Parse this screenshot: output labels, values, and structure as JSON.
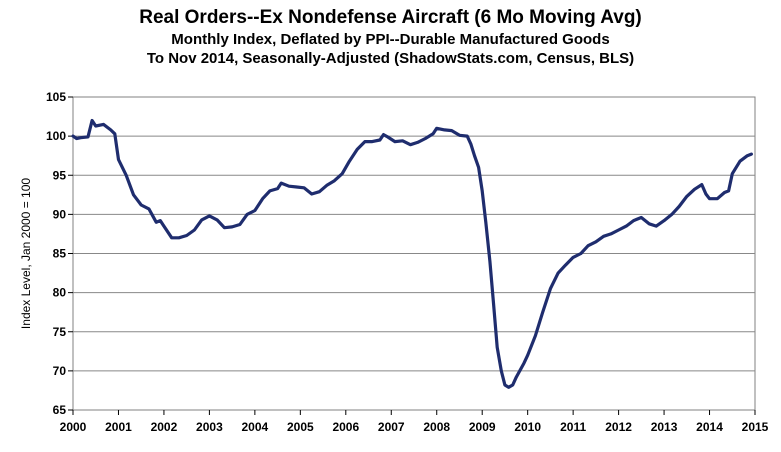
{
  "chart_data": {
    "type": "line",
    "title": "Real Orders--Ex Nondefense Aircraft (6 Mo Moving Avg)",
    "subtitle_1": "Monthly Index, Deflated by PPI--Durable Manufactured Goods",
    "subtitle_2": "To Nov 2014, Seasonally-Adjusted  (ShadowStats.com, Census, BLS)",
    "xlabel": "",
    "ylabel": "Index Level, Jan 2000 = 100",
    "xlim": [
      2000,
      2015
    ],
    "ylim": [
      65,
      105
    ],
    "x_ticks": [
      "2000",
      "2001",
      "2002",
      "2003",
      "2004",
      "2005",
      "2006",
      "2007",
      "2008",
      "2009",
      "2010",
      "2011",
      "2012",
      "2013",
      "2014",
      "2015"
    ],
    "y_ticks": [
      "65",
      "70",
      "75",
      "80",
      "85",
      "90",
      "95",
      "100",
      "105"
    ],
    "grid": true,
    "line_color": "#1f2d6e",
    "series": [
      {
        "name": "Real Orders--Ex Nondefense Aircraft (6 Mo Moving Avg)",
        "points": [
          [
            2000.0,
            100.0
          ],
          [
            2000.08,
            99.7
          ],
          [
            2000.17,
            99.8
          ],
          [
            2000.33,
            99.9
          ],
          [
            2000.42,
            102.0
          ],
          [
            2000.5,
            101.3
          ],
          [
            2000.67,
            101.5
          ],
          [
            2000.83,
            100.8
          ],
          [
            2000.92,
            100.3
          ],
          [
            2001.0,
            97.0
          ],
          [
            2001.17,
            95.0
          ],
          [
            2001.33,
            92.5
          ],
          [
            2001.5,
            91.2
          ],
          [
            2001.67,
            90.7
          ],
          [
            2001.83,
            89.0
          ],
          [
            2001.92,
            89.2
          ],
          [
            2002.0,
            88.5
          ],
          [
            2002.17,
            87.0
          ],
          [
            2002.33,
            87.0
          ],
          [
            2002.5,
            87.3
          ],
          [
            2002.67,
            88.0
          ],
          [
            2002.83,
            89.3
          ],
          [
            2003.0,
            89.8
          ],
          [
            2003.17,
            89.3
          ],
          [
            2003.33,
            88.3
          ],
          [
            2003.5,
            88.4
          ],
          [
            2003.67,
            88.7
          ],
          [
            2003.83,
            90.0
          ],
          [
            2004.0,
            90.5
          ],
          [
            2004.17,
            92.0
          ],
          [
            2004.33,
            93.0
          ],
          [
            2004.5,
            93.3
          ],
          [
            2004.58,
            94.0
          ],
          [
            2004.75,
            93.6
          ],
          [
            2004.92,
            93.5
          ],
          [
            2005.08,
            93.4
          ],
          [
            2005.25,
            92.6
          ],
          [
            2005.42,
            92.9
          ],
          [
            2005.58,
            93.7
          ],
          [
            2005.75,
            94.3
          ],
          [
            2005.92,
            95.2
          ],
          [
            2006.0,
            96.0
          ],
          [
            2006.08,
            96.8
          ],
          [
            2006.25,
            98.3
          ],
          [
            2006.42,
            99.3
          ],
          [
            2006.58,
            99.3
          ],
          [
            2006.75,
            99.5
          ],
          [
            2006.83,
            100.2
          ],
          [
            2006.92,
            99.9
          ],
          [
            2007.08,
            99.3
          ],
          [
            2007.25,
            99.4
          ],
          [
            2007.42,
            98.9
          ],
          [
            2007.58,
            99.2
          ],
          [
            2007.75,
            99.7
          ],
          [
            2007.92,
            100.3
          ],
          [
            2008.0,
            101.0
          ],
          [
            2008.17,
            100.8
          ],
          [
            2008.33,
            100.7
          ],
          [
            2008.5,
            100.1
          ],
          [
            2008.67,
            100.0
          ],
          [
            2008.75,
            99.0
          ],
          [
            2008.83,
            97.5
          ],
          [
            2008.92,
            96.0
          ],
          [
            2009.0,
            93.0
          ],
          [
            2009.08,
            89.0
          ],
          [
            2009.17,
            84.0
          ],
          [
            2009.25,
            78.5
          ],
          [
            2009.33,
            73.0
          ],
          [
            2009.42,
            70.0
          ],
          [
            2009.5,
            68.2
          ],
          [
            2009.58,
            67.9
          ],
          [
            2009.67,
            68.2
          ],
          [
            2009.75,
            69.2
          ],
          [
            2009.92,
            71.0
          ],
          [
            2010.0,
            72.0
          ],
          [
            2010.17,
            74.5
          ],
          [
            2010.33,
            77.5
          ],
          [
            2010.5,
            80.5
          ],
          [
            2010.67,
            82.5
          ],
          [
            2010.83,
            83.5
          ],
          [
            2011.0,
            84.5
          ],
          [
            2011.17,
            85.0
          ],
          [
            2011.33,
            86.0
          ],
          [
            2011.5,
            86.5
          ],
          [
            2011.67,
            87.2
          ],
          [
            2011.83,
            87.5
          ],
          [
            2012.0,
            88.0
          ],
          [
            2012.17,
            88.5
          ],
          [
            2012.33,
            89.2
          ],
          [
            2012.5,
            89.6
          ],
          [
            2012.67,
            88.8
          ],
          [
            2012.83,
            88.5
          ],
          [
            2013.0,
            89.2
          ],
          [
            2013.17,
            90.0
          ],
          [
            2013.33,
            91.0
          ],
          [
            2013.5,
            92.3
          ],
          [
            2013.67,
            93.2
          ],
          [
            2013.83,
            93.8
          ],
          [
            2013.92,
            92.6
          ],
          [
            2014.0,
            92.0
          ],
          [
            2014.17,
            92.0
          ],
          [
            2014.33,
            92.8
          ],
          [
            2014.42,
            93.0
          ],
          [
            2014.5,
            95.2
          ],
          [
            2014.67,
            96.8
          ],
          [
            2014.83,
            97.5
          ],
          [
            2014.92,
            97.7
          ]
        ]
      }
    ]
  }
}
